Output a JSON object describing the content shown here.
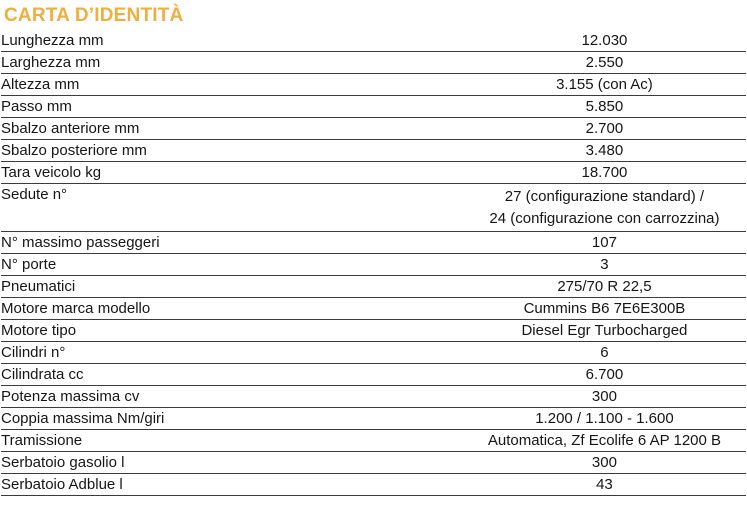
{
  "title": "CARTA D’IDENTITÀ",
  "accent_color": "#F1AE3F",
  "table": {
    "rows": [
      {
        "label": "Lunghezza mm",
        "value": "12.030"
      },
      {
        "label": "Larghezza mm",
        "value": "2.550"
      },
      {
        "label": "Altezza mm",
        "value": "3.155 (con Ac)"
      },
      {
        "label": "Passo mm",
        "value": "5.850"
      },
      {
        "label": "Sbalzo anteriore mm",
        "value": "2.700"
      },
      {
        "label": "Sbalzo posteriore mm",
        "value": "3.480"
      },
      {
        "label": "Tara veicolo kg",
        "value": "18.700"
      },
      {
        "label": "Sedute n°",
        "value": "27 (configurazione standard) /\n24 (configurazione con carrozzina)"
      },
      {
        "label": "N° massimo passeggeri",
        "value": "107"
      },
      {
        "label": "N° porte",
        "value": "3"
      },
      {
        "label": "Pneumatici",
        "value": "275/70 R 22,5"
      },
      {
        "label": "Motore marca modello",
        "value": "Cummins B6 7E6E300B"
      },
      {
        "label": "Motore tipo",
        "value": "Diesel Egr Turbocharged"
      },
      {
        "label": "Cilindri n°",
        "value": "6"
      },
      {
        "label": "Cilindrata cc",
        "value": "6.700"
      },
      {
        "label": "Potenza massima cv",
        "value": "300"
      },
      {
        "label": "Coppia massima Nm/giri",
        "value": "1.200 / 1.100 - 1.600"
      },
      {
        "label": "Tramissione",
        "value": "Automatica, Zf Ecolife 6 AP 1200 B"
      },
      {
        "label": "Serbatoio gasolio l",
        "value": "300"
      },
      {
        "label": "Serbatoio Adblue l",
        "value": "43"
      }
    ]
  }
}
